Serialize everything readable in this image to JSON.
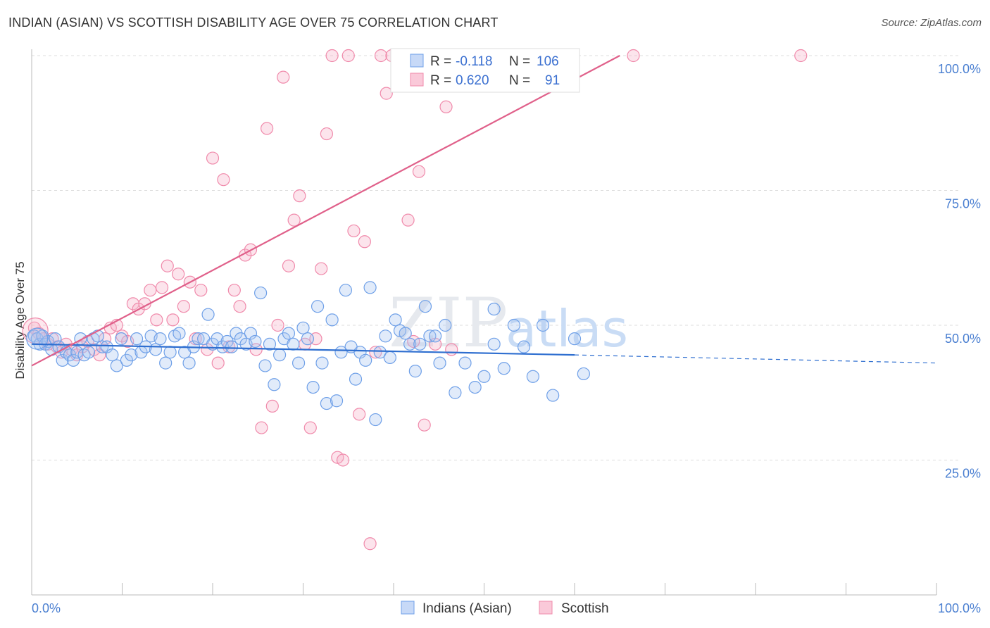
{
  "title": "INDIAN (ASIAN) VS SCOTTISH DISABILITY AGE OVER 75 CORRELATION CHART",
  "source": "Source: ZipAtlas.com",
  "watermark": {
    "zip": "ZIP",
    "atlas": "atlas"
  },
  "colors": {
    "blue": "#6fa0e8",
    "blue_line": "#2f6fd0",
    "pink": "#f08aab",
    "pink_line": "#e0608a",
    "grid": "#dddddd",
    "tick": "#4a7fd1"
  },
  "legend": {
    "r_label": "R =",
    "n_label": "N =",
    "blue": {
      "r": "-0.118",
      "n": "106"
    },
    "pink": {
      "r": "0.620",
      "n": "91"
    }
  },
  "bottom_legend": [
    "Indians (Asian)",
    "Scottish"
  ],
  "chart_data": {
    "type": "scatter",
    "title": "INDIAN (ASIAN) VS SCOTTISH DISABILITY AGE OVER 75 CORRELATION CHART",
    "xlabel": "",
    "ylabel": "Disability Age Over 75",
    "xlim": [
      0,
      100
    ],
    "ylim": [
      0,
      100
    ],
    "x_tick_labels": [
      "0.0%",
      "100.0%"
    ],
    "y_ticks": [
      25,
      50,
      75,
      100
    ],
    "y_tick_labels": [
      "25.0%",
      "50.0%",
      "75.0%",
      "100.0%"
    ],
    "grid": true,
    "series": [
      {
        "name": "Indians (Asian)",
        "color": "#6fa0e8",
        "trend": {
          "x0": 0,
          "y0": 46.5,
          "x1": 60,
          "y1": 44.5,
          "dashed_to_x": 100,
          "dashed_to_y": 43.0
        },
        "points": [
          [
            0.3,
            48
          ],
          [
            0.6,
            47.5
          ],
          [
            0.9,
            46.5
          ],
          [
            1.2,
            48
          ],
          [
            1.5,
            46.5
          ],
          [
            1.8,
            47
          ],
          [
            2.2,
            45.5
          ],
          [
            2.6,
            47.5
          ],
          [
            3.0,
            46
          ],
          [
            3.4,
            43.5
          ],
          [
            3.8,
            45
          ],
          [
            4.2,
            44.5
          ],
          [
            4.6,
            43.5
          ],
          [
            5.0,
            45
          ],
          [
            5.4,
            47.5
          ],
          [
            5.8,
            44.5
          ],
          [
            6.3,
            45
          ],
          [
            6.8,
            47.5
          ],
          [
            7.3,
            48
          ],
          [
            7.8,
            46
          ],
          [
            8.3,
            46
          ],
          [
            8.9,
            44.5
          ],
          [
            9.4,
            42.5
          ],
          [
            9.9,
            47.5
          ],
          [
            10.5,
            43.5
          ],
          [
            11.0,
            44.5
          ],
          [
            11.6,
            47.5
          ],
          [
            12.1,
            45
          ],
          [
            12.6,
            46
          ],
          [
            13.2,
            48
          ],
          [
            13.7,
            45.5
          ],
          [
            14.2,
            47.5
          ],
          [
            14.8,
            43
          ],
          [
            15.3,
            45
          ],
          [
            15.8,
            48
          ],
          [
            16.3,
            48.5
          ],
          [
            16.9,
            45
          ],
          [
            17.4,
            43
          ],
          [
            17.9,
            46
          ],
          [
            18.4,
            47.5
          ],
          [
            19.0,
            47.5
          ],
          [
            19.5,
            52
          ],
          [
            20.0,
            46.5
          ],
          [
            20.5,
            47.5
          ],
          [
            21.1,
            46
          ],
          [
            21.6,
            47
          ],
          [
            22.1,
            46
          ],
          [
            22.6,
            48.5
          ],
          [
            23.1,
            47.5
          ],
          [
            23.7,
            46.5
          ],
          [
            24.2,
            48.5
          ],
          [
            24.7,
            47
          ],
          [
            25.3,
            56
          ],
          [
            25.8,
            42.5
          ],
          [
            26.3,
            46.5
          ],
          [
            26.8,
            39
          ],
          [
            27.4,
            44.5
          ],
          [
            27.9,
            47.5
          ],
          [
            28.4,
            48.5
          ],
          [
            28.9,
            46.5
          ],
          [
            29.5,
            43
          ],
          [
            30.0,
            49.5
          ],
          [
            30.5,
            47.5
          ],
          [
            31.1,
            38.5
          ],
          [
            31.6,
            53.5
          ],
          [
            32.1,
            43
          ],
          [
            32.6,
            35.5
          ],
          [
            33.2,
            51
          ],
          [
            33.7,
            36
          ],
          [
            34.2,
            45
          ],
          [
            34.7,
            56.5
          ],
          [
            35.3,
            46
          ],
          [
            35.8,
            40
          ],
          [
            36.3,
            45
          ],
          [
            36.9,
            43.5
          ],
          [
            37.4,
            57
          ],
          [
            38.0,
            32.5
          ],
          [
            38.5,
            45
          ],
          [
            39.1,
            48
          ],
          [
            39.6,
            44
          ],
          [
            40.2,
            51
          ],
          [
            40.7,
            49
          ],
          [
            41.3,
            48.5
          ],
          [
            41.8,
            46.5
          ],
          [
            42.4,
            41.5
          ],
          [
            42.9,
            46.5
          ],
          [
            43.5,
            53.5
          ],
          [
            44.0,
            48
          ],
          [
            44.6,
            48
          ],
          [
            45.1,
            43
          ],
          [
            45.7,
            50
          ],
          [
            46.8,
            37.5
          ],
          [
            47.9,
            43
          ],
          [
            49.0,
            38.5
          ],
          [
            50.0,
            40.5
          ],
          [
            51.1,
            53
          ],
          [
            51.1,
            46.5
          ],
          [
            52.2,
            42
          ],
          [
            53.3,
            50
          ],
          [
            54.4,
            46
          ],
          [
            55.4,
            40.5
          ],
          [
            56.5,
            50
          ],
          [
            57.6,
            37
          ],
          [
            60.0,
            47.5
          ],
          [
            61.0,
            41
          ]
        ]
      },
      {
        "name": "Scottish",
        "color": "#f08aab",
        "trend": {
          "x0": 0,
          "y0": 42.5,
          "x1": 65,
          "y1": 100
        },
        "points": [
          [
            0.3,
            49.5
          ],
          [
            0.8,
            48.5
          ],
          [
            1.3,
            47.5
          ],
          [
            1.8,
            46.5
          ],
          [
            2.3,
            47.5
          ],
          [
            2.8,
            46
          ],
          [
            3.3,
            45
          ],
          [
            3.8,
            46.5
          ],
          [
            4.4,
            45.5
          ],
          [
            5.0,
            44.5
          ],
          [
            5.6,
            46
          ],
          [
            6.2,
            47
          ],
          [
            6.9,
            45.5
          ],
          [
            7.5,
            44.5
          ],
          [
            8.1,
            47.5
          ],
          [
            8.7,
            49.5
          ],
          [
            9.4,
            50
          ],
          [
            10.0,
            48
          ],
          [
            10.6,
            47
          ],
          [
            11.2,
            54
          ],
          [
            11.8,
            53
          ],
          [
            12.5,
            54
          ],
          [
            13.1,
            56.5
          ],
          [
            13.8,
            51
          ],
          [
            14.4,
            57
          ],
          [
            15.0,
            61
          ],
          [
            15.6,
            51
          ],
          [
            16.2,
            59.5
          ],
          [
            16.8,
            53.5
          ],
          [
            17.5,
            58
          ],
          [
            18.1,
            47.5
          ],
          [
            18.7,
            56.5
          ],
          [
            19.4,
            45.5
          ],
          [
            20.0,
            81
          ],
          [
            20.6,
            43
          ],
          [
            21.2,
            77
          ],
          [
            21.8,
            46
          ],
          [
            22.4,
            56.5
          ],
          [
            23.0,
            53.5
          ],
          [
            23.6,
            63
          ],
          [
            24.2,
            64
          ],
          [
            24.8,
            45.5
          ],
          [
            25.4,
            31
          ],
          [
            26.0,
            86.5
          ],
          [
            26.6,
            35
          ],
          [
            27.2,
            50
          ],
          [
            27.8,
            96
          ],
          [
            28.4,
            61
          ],
          [
            29.0,
            69.5
          ],
          [
            29.6,
            74
          ],
          [
            30.2,
            46.5
          ],
          [
            30.8,
            31
          ],
          [
            31.4,
            47.5
          ],
          [
            32.0,
            60.5
          ],
          [
            32.6,
            85.5
          ],
          [
            33.2,
            100
          ],
          [
            33.8,
            25.5
          ],
          [
            34.4,
            25
          ],
          [
            35.0,
            100
          ],
          [
            35.6,
            67.5
          ],
          [
            36.2,
            33.5
          ],
          [
            36.8,
            65.5
          ],
          [
            37.4,
            9.5
          ],
          [
            38.0,
            45
          ],
          [
            38.6,
            100
          ],
          [
            39.2,
            93
          ],
          [
            39.8,
            100
          ],
          [
            40.4,
            95
          ],
          [
            41.0,
            100
          ],
          [
            41.6,
            69.5
          ],
          [
            42.2,
            47
          ],
          [
            42.8,
            78.5
          ],
          [
            43.4,
            31.5
          ],
          [
            44.0,
            100
          ],
          [
            44.6,
            46.5
          ],
          [
            45.2,
            100
          ],
          [
            45.8,
            90.5
          ],
          [
            46.4,
            45.5
          ],
          [
            47.0,
            100
          ],
          [
            48.0,
            100
          ],
          [
            49.0,
            100
          ],
          [
            50.0,
            100
          ],
          [
            51.0,
            100
          ],
          [
            52.0,
            100
          ],
          [
            53.0,
            100
          ],
          [
            55.0,
            100
          ],
          [
            56.0,
            100
          ],
          [
            57.0,
            100
          ],
          [
            58.0,
            100
          ],
          [
            66.5,
            100
          ],
          [
            85.0,
            100
          ]
        ]
      }
    ]
  }
}
